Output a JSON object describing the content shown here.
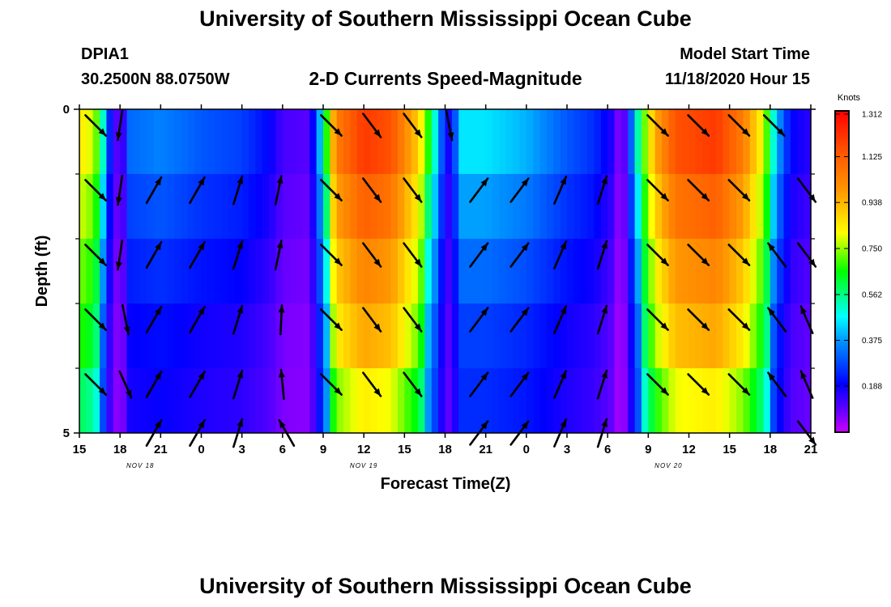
{
  "header": {
    "title": "University of Southern Mississippi Ocean Cube",
    "station_id": "DPIA1",
    "location": "30.2500N 88.0750W",
    "plot_title": "2-D Currents Speed-Magnitude",
    "model_label": "Model Start Time",
    "model_time": "11/18/2020 Hour 15"
  },
  "footer": {
    "title": "University of Southern Mississippi Ocean Cube"
  },
  "chart_data": {
    "type": "heatmap",
    "title": "2-D Currents Speed-Magnitude",
    "xlabel": "Forecast Time(Z)",
    "ylabel": "Depth (ft)",
    "x_range_hours": [
      0,
      54
    ],
    "y_range": [
      0,
      5
    ],
    "x_ticks": [
      {
        "h": 0,
        "label": "15"
      },
      {
        "h": 3,
        "label": "18"
      },
      {
        "h": 6,
        "label": "21"
      },
      {
        "h": 9,
        "label": "0"
      },
      {
        "h": 12,
        "label": "3"
      },
      {
        "h": 15,
        "label": "6"
      },
      {
        "h": 18,
        "label": "9"
      },
      {
        "h": 21,
        "label": "12"
      },
      {
        "h": 24,
        "label": "15"
      },
      {
        "h": 27,
        "label": "18"
      },
      {
        "h": 30,
        "label": "21"
      },
      {
        "h": 33,
        "label": "0"
      },
      {
        "h": 36,
        "label": "3"
      },
      {
        "h": 39,
        "label": "6"
      },
      {
        "h": 42,
        "label": "9"
      },
      {
        "h": 45,
        "label": "12"
      },
      {
        "h": 48,
        "label": "15"
      },
      {
        "h": 51,
        "label": "18"
      },
      {
        "h": 54,
        "label": "21"
      }
    ],
    "date_labels": [
      {
        "h": 4.5,
        "label": "NOV 18"
      },
      {
        "h": 21,
        "label": "NOV 19"
      },
      {
        "h": 43.5,
        "label": "NOV 20"
      }
    ],
    "y_tick_labels": [
      {
        "v": 0,
        "label": "0"
      },
      {
        "v": 5,
        "label": "5"
      }
    ],
    "y_minor_ticks": [
      1,
      2,
      3,
      4
    ],
    "colorbar": {
      "unit": "Knots",
      "min": 0.0,
      "max": 1.312,
      "ticks": [
        "1.312",
        "1.125",
        "0.938",
        "0.750",
        "0.562",
        "0.375",
        "0.188"
      ],
      "tick_values": [
        1.312,
        1.125,
        0.938,
        0.75,
        0.562,
        0.375,
        0.188
      ]
    },
    "speed_profile": [
      [
        0,
        0.85
      ],
      [
        1,
        0.78
      ],
      [
        1.5,
        0.65
      ],
      [
        2.5,
        0.1
      ],
      [
        3.2,
        0.12
      ],
      [
        3.7,
        0.32
      ],
      [
        6,
        0.35
      ],
      [
        9,
        0.3
      ],
      [
        12,
        0.27
      ],
      [
        14,
        0.2
      ],
      [
        15,
        0.12
      ],
      [
        17,
        0.1
      ],
      [
        18,
        0.5
      ],
      [
        18.5,
        0.85
      ],
      [
        19,
        1.05
      ],
      [
        21,
        1.2
      ],
      [
        23,
        1.15
      ],
      [
        25,
        0.9
      ],
      [
        26,
        0.6
      ],
      [
        26.5,
        0.4
      ],
      [
        27,
        0.2
      ],
      [
        27.5,
        0.15
      ],
      [
        28,
        0.45
      ],
      [
        30,
        0.45
      ],
      [
        33,
        0.4
      ],
      [
        36,
        0.3
      ],
      [
        38,
        0.25
      ],
      [
        39.5,
        0.15
      ],
      [
        40,
        0.0
      ],
      [
        40.5,
        0.2
      ],
      [
        41.5,
        0.65
      ],
      [
        42.5,
        0.95
      ],
      [
        44,
        1.15
      ],
      [
        47,
        1.2
      ],
      [
        49,
        1.05
      ],
      [
        50.5,
        0.8
      ],
      [
        51.5,
        0.4
      ],
      [
        52.5,
        0.2
      ],
      [
        54,
        0.15
      ]
    ],
    "depth_decay_strong": [
      1.0,
      0.93,
      0.86,
      0.8,
      0.7
    ],
    "depth_decay_weak": [
      1.0,
      0.85,
      0.72,
      0.6,
      0.55
    ],
    "arrow_rows_depth": [
      0.25,
      1.25,
      2.25,
      3.25,
      4.25
    ],
    "arrows": [
      {
        "h": 1.2,
        "dir": [
          0.7,
          0.7
        ],
        "rows": [
          0,
          1,
          2,
          3,
          4
        ]
      },
      {
        "h": 3.0,
        "dir": [
          -0.15,
          1.0
        ],
        "rows": [
          0,
          1,
          2
        ]
      },
      {
        "h": 3.4,
        "dir": [
          0.2,
          1.0
        ],
        "rows": [
          3
        ]
      },
      {
        "h": 3.4,
        "dir": [
          0.4,
          0.9
        ],
        "rows": [
          4
        ]
      },
      {
        "h": 5.5,
        "dir": [
          0.5,
          -0.87
        ],
        "rows": [
          1,
          2,
          3,
          4,
          5
        ]
      },
      {
        "h": 8.7,
        "dir": [
          0.5,
          -0.87
        ],
        "rows": [
          1,
          2,
          3,
          4,
          5
        ]
      },
      {
        "h": 11.7,
        "dir": [
          0.3,
          -0.95
        ],
        "rows": [
          1,
          2,
          3,
          4,
          5
        ]
      },
      {
        "h": 14.7,
        "dir": [
          0.2,
          -0.98
        ],
        "rows": [
          1,
          2
        ]
      },
      {
        "h": 14.9,
        "dir": [
          0.05,
          -1.0
        ],
        "rows": [
          3
        ]
      },
      {
        "h": 15.0,
        "dir": [
          -0.1,
          -1.0
        ],
        "rows": [
          4
        ]
      },
      {
        "h": 15.3,
        "dir": [
          -0.5,
          -0.87
        ],
        "rows": [
          5
        ]
      },
      {
        "h": 18.6,
        "dir": [
          0.7,
          0.7
        ],
        "rows": [
          0,
          1,
          2,
          3,
          4
        ]
      },
      {
        "h": 21.6,
        "dir": [
          0.6,
          0.8
        ],
        "rows": [
          0,
          1,
          2,
          3,
          4
        ]
      },
      {
        "h": 24.6,
        "dir": [
          0.6,
          0.8
        ],
        "rows": [
          0,
          1,
          2,
          3,
          4
        ]
      },
      {
        "h": 27.3,
        "dir": [
          0.2,
          1.0
        ],
        "rows": [
          0
        ]
      },
      {
        "h": 29.5,
        "dir": [
          0.6,
          -0.8
        ],
        "rows": [
          1,
          2,
          3,
          4,
          5
        ]
      },
      {
        "h": 32.5,
        "dir": [
          0.6,
          -0.8
        ],
        "rows": [
          1,
          2,
          3,
          4,
          5
        ]
      },
      {
        "h": 35.5,
        "dir": [
          0.4,
          -0.92
        ],
        "rows": [
          1,
          2,
          3,
          4,
          5
        ]
      },
      {
        "h": 38.6,
        "dir": [
          0.3,
          -0.95
        ],
        "rows": [
          1,
          2,
          3,
          4,
          5
        ]
      },
      {
        "h": 42.7,
        "dir": [
          0.7,
          0.7
        ],
        "rows": [
          0,
          1,
          2,
          3,
          4
        ]
      },
      {
        "h": 45.7,
        "dir": [
          0.7,
          0.7
        ],
        "rows": [
          0,
          1,
          2,
          3,
          4
        ]
      },
      {
        "h": 48.7,
        "dir": [
          0.7,
          0.7
        ],
        "rows": [
          0,
          1,
          2,
          3,
          4
        ]
      },
      {
        "h": 51.3,
        "dir": [
          0.7,
          0.7
        ],
        "rows": [
          0
        ]
      },
      {
        "h": 51.5,
        "dir": [
          -0.6,
          -0.8
        ],
        "rows": [
          2,
          3,
          4
        ]
      },
      {
        "h": 53.7,
        "dir": [
          0.6,
          0.8
        ],
        "rows": [
          1,
          2
        ]
      },
      {
        "h": 53.7,
        "dir": [
          -0.4,
          -0.92
        ],
        "rows": [
          3,
          4
        ]
      },
      {
        "h": 53.7,
        "dir": [
          0.6,
          0.8
        ],
        "rows": [
          5
        ]
      }
    ]
  }
}
